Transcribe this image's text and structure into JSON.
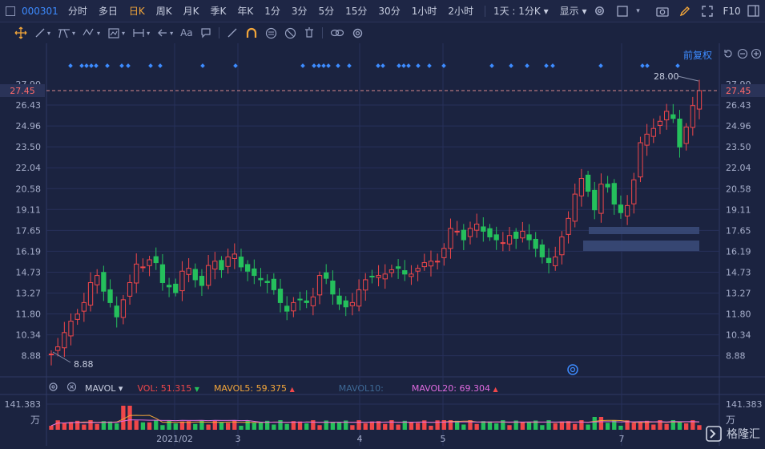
{
  "toolbar": {
    "code": "000301",
    "periods": [
      "分时",
      "多日",
      "日K",
      "周K",
      "月K",
      "季K",
      "年K",
      "1分",
      "3分",
      "5分",
      "15分",
      "30分",
      "1小时",
      "2小时"
    ],
    "active_period": "日K",
    "interval_select": "1天 : 1分K",
    "display_label": "显示",
    "f10_label": "F10"
  },
  "drawing_tools": {
    "text_tool": "Aa"
  },
  "chart": {
    "fq_label": "前复权",
    "current_price": "27.45",
    "high_label": "28.00",
    "low_label": "8.88",
    "y_ticks": [
      "27.90",
      "26.43",
      "24.96",
      "23.50",
      "22.04",
      "20.58",
      "19.11",
      "17.65",
      "16.19",
      "14.73",
      "13.27",
      "11.80",
      "10.34",
      "8.88"
    ],
    "x_ticks": [
      "2021/02",
      "3",
      "4",
      "5",
      "7"
    ],
    "colors": {
      "up": "#f0474a",
      "down": "#25c05c",
      "bg": "#1b2340",
      "grid": "#27305a",
      "price_line": "#d8898b",
      "axis_text": "#a7afcb",
      "dot": "#3d8bff"
    }
  },
  "volume": {
    "indicator": "MAVOL",
    "vol_label": "VOL: 51.315",
    "mavol5_label": "MAVOL5: 59.375",
    "mavol10_label": "MAVOL10:",
    "mavol20_label": "MAVOL20: 69.304",
    "axis_top": "141.383",
    "axis_unit": "万",
    "colors": {
      "vol": "#f0474a",
      "mavol5": "#f3a63a",
      "mavol10": "#4a78a8",
      "mavol20": "#e06be0"
    }
  },
  "watermark": {
    "text": "格隆汇"
  }
}
